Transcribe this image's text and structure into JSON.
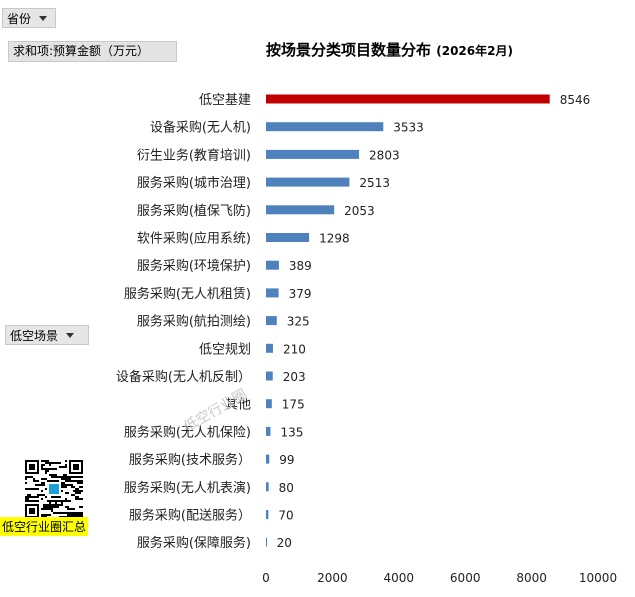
{
  "filters": {
    "province_label": "省份",
    "sum_label": "求和项:预算金额（万元）",
    "scene_label": "低空场景"
  },
  "title": {
    "main": "按场景分类项目数量分布",
    "sub": "(2026年2月)"
  },
  "watermark": "低空行业圈",
  "qr_caption": "低空行业圈汇总",
  "colors": {
    "highlight": "#c00000",
    "bar": "#4f81bd"
  },
  "chart_data": {
    "type": "bar",
    "orientation": "horizontal",
    "categories": [
      "低空基建",
      "设备采购(无人机)",
      "衍生业务(教育培训)",
      "服务采购(城市治理)",
      "服务采购(植保飞防)",
      "软件采购(应用系统)",
      "服务采购(环境保护)",
      "服务采购(无人机租赁)",
      "服务采购(航拍测绘)",
      "低空规划",
      "设备采购(无人机反制）",
      "其他",
      "服务采购(无人机保险)",
      "服务采购(技术服务）",
      "服务采购(无人机表演)",
      "服务采购(配送服务）",
      "服务采购(保障服务)"
    ],
    "values": [
      8546,
      3533,
      2803,
      2513,
      2053,
      1298,
      389,
      379,
      325,
      210,
      203,
      175,
      135,
      99,
      80,
      70,
      20
    ],
    "xlim": [
      0,
      10000
    ],
    "xticks": [
      0,
      2000,
      4000,
      6000,
      8000,
      10000
    ],
    "highlight_index": 0,
    "grid": false
  }
}
